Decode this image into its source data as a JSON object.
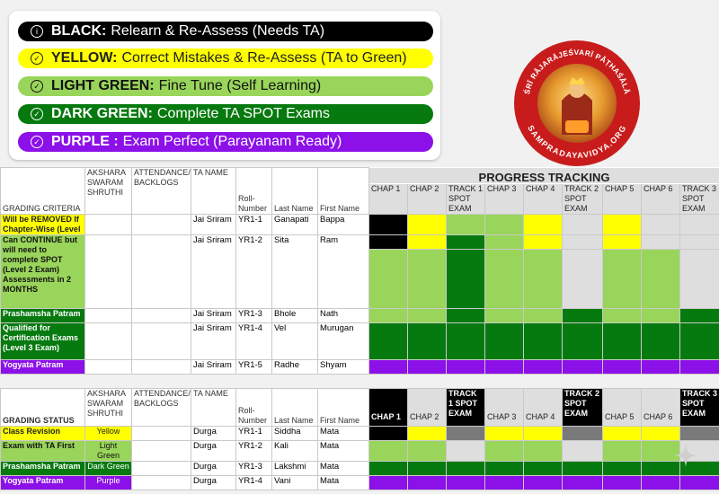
{
  "colors": {
    "black": "#000000",
    "yellow": "#ffff00",
    "light_green": "#99d55a",
    "dark_green": "#077a0f",
    "purple": "#8c10e8",
    "gray": "#dedede",
    "mid_gray": "#7a7a7a",
    "white": "#ffffff"
  },
  "legend": [
    {
      "icon": "info-icon",
      "bold": "BLACK:",
      "text": "Relearn & Re-Assess (Needs TA)",
      "bg": "#000000",
      "fg": "#ffffff"
    },
    {
      "icon": "check-circle-icon",
      "bold": "YELLOW:",
      "text": "Correct Mistakes & Re-Assess (TA to Green)",
      "bg": "#ffff00",
      "fg": "#222222"
    },
    {
      "icon": "check-circle-icon",
      "bold": "LIGHT GREEN:",
      "text": "Fine Tune (Self Learning)",
      "bg": "#99d55a",
      "fg": "#111111"
    },
    {
      "icon": "check-circle-icon",
      "bold": "DARK GREEN:",
      "text": "Complete TA SPOT Exams",
      "bg": "#077a0f",
      "fg": "#ffffff"
    },
    {
      "icon": "check-circle-icon",
      "bold": "PURPLE :",
      "text": "Exam Perfect (Parayanam Ready)",
      "bg": "#8c10e8",
      "fg": "#ffffff"
    }
  ],
  "logo": {
    "top_text": "ŚRĪ RĀJARĀJEŚVARĪ PĀṬHAŚĀLĀ",
    "bottom_text": "SAMPRADAYAVIDYA.ORG",
    "ring_color": "#c81c1c"
  },
  "table1": {
    "progress_title": "PROGRESS TRACKING",
    "headers": {
      "first": "GRADING CRITERIA",
      "akshara": "AKSHARA SWARAM SHRUTHI",
      "attendance": "ATTENDANCE/ BACKLOGS",
      "ta": "TA NAME",
      "roll": "Roll-Number",
      "last": "Last Name",
      "firstname": "First Name"
    },
    "chapters": [
      "CHAP 1",
      "CHAP 2",
      "TRACK 1 SPOT EXAM",
      "CHAP 3",
      "CHAP 4",
      "TRACK 2 SPOT EXAM",
      "CHAP 5",
      "CHAP 6",
      "TRACK 3 SPOT EXAM"
    ],
    "rows": [
      {
        "criteria": "Will be REMOVED If Chapter-Wise (Level",
        "crit_bg": "#ffff00",
        "crit_fg": "#222222",
        "ta": "Jai Sriram",
        "roll": "YR1-1",
        "last": "Ganapati",
        "first": "Bappa",
        "cells": [
          "#000000",
          "#ffff00",
          "#99d55a",
          "#99d55a",
          "#ffff00",
          "#dedede",
          "#ffff00",
          "#dedede",
          "#dedede"
        ]
      },
      {
        "criteria": "Can CONTINUE but will need to complete SPOT (Level 2 Exam) Assessments in 2 MONTHS",
        "crit_bg": "#99d55a",
        "crit_fg": "#111111",
        "ta": "Jai Sriram",
        "roll": "YR1-2",
        "last": "Sita",
        "first": "Ram",
        "cells": [
          "#000000",
          "#ffff00",
          "#077a0f",
          "#99d55a",
          "#ffff00",
          "#dedede",
          "#ffff00",
          "#dedede",
          "#dedede"
        ],
        "cells_lower": [
          "#99d55a",
          "#99d55a",
          "#077a0f",
          "#99d55a",
          "#99d55a",
          "#dedede",
          "#99d55a",
          "#99d55a",
          "#dedede"
        ]
      },
      {
        "criteria": "Prashamsha Patram",
        "crit_bg": "#077a0f",
        "crit_fg": "#ffffff",
        "ta": "Jai Sriram",
        "roll": "YR1-3",
        "last": "Bhole",
        "first": "Nath",
        "cells": [
          "#99d55a",
          "#99d55a",
          "#077a0f",
          "#99d55a",
          "#99d55a",
          "#077a0f",
          "#99d55a",
          "#99d55a",
          "#077a0f"
        ]
      },
      {
        "criteria": "Qualified for Certification Exams (Level 3 Exam)",
        "crit_bg": "#077a0f",
        "crit_fg": "#ffffff",
        "ta": "Jai Sriram",
        "roll": "YR1-4",
        "last": "Vel",
        "first": "Murugan",
        "cells": [
          "#077a0f",
          "#077a0f",
          "#077a0f",
          "#077a0f",
          "#077a0f",
          "#077a0f",
          "#077a0f",
          "#077a0f",
          "#077a0f"
        ]
      },
      {
        "criteria": "Yogyata Patram",
        "crit_bg": "#8c10e8",
        "crit_fg": "#ffffff",
        "ta": "Jai Sriram",
        "roll": "YR1-5",
        "last": "Radhe",
        "first": "Shyam",
        "cells": [
          "#8c10e8",
          "#8c10e8",
          "#8c10e8",
          "#8c10e8",
          "#8c10e8",
          "#8c10e8",
          "#8c10e8",
          "#8c10e8",
          "#8c10e8"
        ]
      }
    ]
  },
  "table2": {
    "headers": {
      "first": "GRADING STATUS",
      "akshara": "AKSHARA SWARAM SHRUTHI",
      "attendance": "ATTENDANCE/ BACKLOGS",
      "ta": "TA NAME",
      "roll": "Roll-Number",
      "last": "Last Name",
      "firstname": "First Name"
    },
    "chapters": [
      "CHAP 1",
      "CHAP 2",
      "TRACK 1 SPOT EXAM",
      "CHAP 3",
      "CHAP 4",
      "TRACK 2 SPOT EXAM",
      "CHAP 5",
      "CHAP 6",
      "TRACK 3 SPOT EXAM"
    ],
    "chapter_dark": [
      true,
      false,
      true,
      false,
      false,
      true,
      false,
      false,
      true
    ],
    "rows": [
      {
        "status": "Class Revision",
        "status_bg": "#ffff00",
        "status_fg": "#222222",
        "level": "Yellow",
        "ta": "Durga",
        "roll": "YR1-1",
        "last": "Siddha",
        "first": "Mata",
        "cells": [
          "#000000",
          "#ffff00",
          "#7a7a7a",
          "#ffff00",
          "#ffff00",
          "#7a7a7a",
          "#ffff00",
          "#ffff00",
          "#7a7a7a"
        ]
      },
      {
        "status": "Exam with TA First",
        "status_bg": "#99d55a",
        "status_fg": "#111111",
        "level": "Light Green",
        "ta": "Durga",
        "roll": "YR1-2",
        "last": "Kali",
        "first": "Mata",
        "cells": [
          "#99d55a",
          "#99d55a",
          "#dedede",
          "#99d55a",
          "#99d55a",
          "#dedede",
          "#99d55a",
          "#99d55a",
          "#dedede"
        ]
      },
      {
        "status": "Prashamsha Patram",
        "status_bg": "#077a0f",
        "status_fg": "#ffffff",
        "level": "Dark Green",
        "ta": "Durga",
        "roll": "YR1-3",
        "last": "Lakshmi",
        "first": "Mata",
        "cells": [
          "#077a0f",
          "#077a0f",
          "#077a0f",
          "#077a0f",
          "#077a0f",
          "#077a0f",
          "#077a0f",
          "#077a0f",
          "#077a0f"
        ]
      },
      {
        "status": "Yogyata Patram",
        "status_bg": "#8c10e8",
        "status_fg": "#ffffff",
        "level": "Purple",
        "ta": "Durga",
        "roll": "YR1-4",
        "last": "Vani",
        "first": "Mata",
        "cells": [
          "#8c10e8",
          "#8c10e8",
          "#8c10e8",
          "#8c10e8",
          "#8c10e8",
          "#8c10e8",
          "#8c10e8",
          "#8c10e8",
          "#8c10e8"
        ]
      }
    ]
  }
}
